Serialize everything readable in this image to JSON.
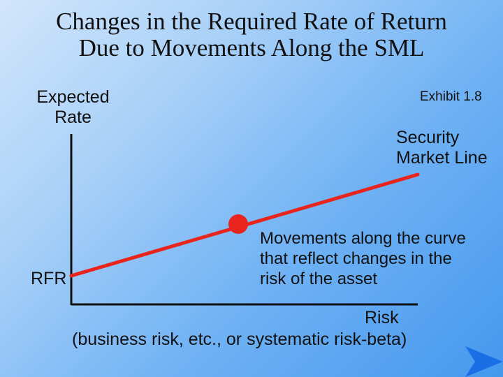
{
  "title": {
    "line1": "Changes in the Required Rate of Return",
    "line2": "Due to Movements Along the SML"
  },
  "exhibit": "Exhibit 1.8",
  "axes": {
    "y_label_line1": "Expected",
    "y_label_line2": "Rate",
    "x_label": "Risk",
    "x_sublabel": "(business risk, etc., or systematic risk-beta)",
    "intercept_label": "RFR"
  },
  "sml": {
    "label_line1": "Security",
    "label_line2": "Market Line",
    "color": "#e8241c"
  },
  "point": {
    "color": "#e8241c"
  },
  "annotation": {
    "line1": "Movements along the curve",
    "line2": "that reflect changes in the",
    "line3": "risk of the asset"
  },
  "nav": {
    "icon": "next-arrow-icon",
    "color": "#1a6fe6"
  }
}
